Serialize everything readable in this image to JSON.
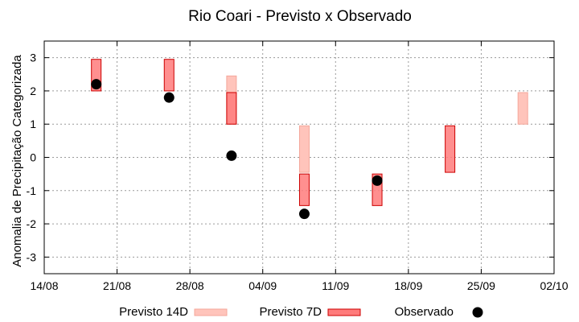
{
  "chart_data": {
    "type": "range-bar",
    "title": "Rio Coari - Previsto x Observado",
    "ylabel": "Anomalia de Precipitação Categorizada",
    "xlabel": "",
    "x_ticks": [
      "14/08",
      "21/08",
      "28/08",
      "04/09",
      "11/09",
      "18/09",
      "25/09",
      "02/10"
    ],
    "x_range": [
      "14/08",
      "02/10"
    ],
    "y_ticks": [
      "3",
      "2",
      "1",
      "0",
      "-1",
      "-2",
      "-3"
    ],
    "ylim": [
      -3.5,
      3.5
    ],
    "grid": true,
    "legend_position": "bottom",
    "series": [
      {
        "name": "Previsto 14D",
        "kind": "range",
        "color": "#ffc4bb",
        "edge_color": "#f4a79b",
        "ranges": [
          {
            "date": "01/09",
            "low": 1.0,
            "high": 2.45
          },
          {
            "date": "08/09",
            "low": -0.45,
            "high": 0.95
          },
          {
            "date": "29/09",
            "low": 1.0,
            "high": 1.95
          }
        ]
      },
      {
        "name": "Previsto 7D",
        "kind": "range",
        "color": "#ff7b7b",
        "edge_color": "#cc0000",
        "ranges": [
          {
            "date": "19/08",
            "low": 2.0,
            "high": 2.95
          },
          {
            "date": "26/08",
            "low": 2.0,
            "high": 2.95
          },
          {
            "date": "01/09",
            "low": 1.0,
            "high": 1.95
          },
          {
            "date": "08/09",
            "low": -1.45,
            "high": -0.5
          },
          {
            "date": "15/09",
            "low": -1.45,
            "high": -0.5
          },
          {
            "date": "22/09",
            "low": -0.45,
            "high": 0.95
          }
        ]
      },
      {
        "name": "Observado",
        "kind": "point",
        "color": "#000000",
        "points": [
          {
            "date": "19/08",
            "value": 2.2
          },
          {
            "date": "26/08",
            "value": 1.8
          },
          {
            "date": "01/09",
            "value": 0.05
          },
          {
            "date": "08/09",
            "value": -1.7
          },
          {
            "date": "15/09",
            "value": -0.7
          }
        ]
      }
    ]
  }
}
